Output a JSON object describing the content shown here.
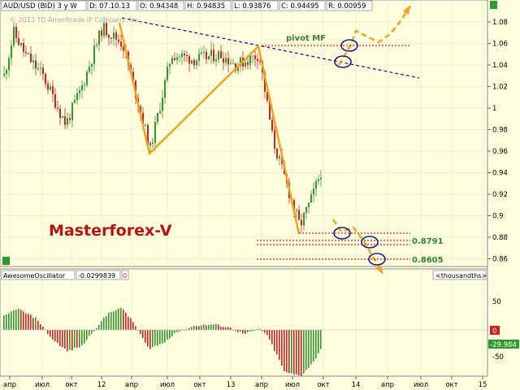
{
  "header": {
    "symbol": "AUD/USD (BID) 3 y W",
    "date": "D: 07.10.13",
    "open": "O: 0.94348",
    "high": "H: 0.94835",
    "low": "L: 0.93876",
    "close": "C: 0.94495",
    "range": "R: 0.00959"
  },
  "copyright": "© 2013 TD Ameritrade IP Company, Inc.",
  "watermark": "Masterforex-V",
  "annotations": {
    "pivot": "pivot MF",
    "level1": "0.8791",
    "level2": "0.8605"
  },
  "oscillator": {
    "name": "AwesomeOscillator",
    "value": "-0.0299839",
    "zero_box": "0",
    "unit": "<thousandths>",
    "current_value": "-29.984",
    "scale": [
      "50",
      "0",
      "-50"
    ]
  },
  "price_axis": [
    "1.08",
    "1.06",
    "1.04",
    "1.02",
    "1",
    "0.98",
    "0.96",
    "0.94",
    "0.92",
    "0.9",
    "0.88",
    "0.86"
  ],
  "time_axis": [
    "апр",
    "июл",
    "окт",
    "12",
    "апр",
    "июл",
    "окт",
    "13",
    "апр",
    "июл",
    "окт",
    "14",
    "апр",
    "июл",
    "окт",
    "15"
  ],
  "colors": {
    "up": "#2e9a2e",
    "down": "#cc2222",
    "trend": "#1a1a9e",
    "zigzag": "#f5a21c",
    "level": "#d81c1c",
    "watermark": "#bb1111",
    "green_text": "#2a8a2a",
    "ellipse": "#1f1f8a"
  },
  "chart_data": {
    "type": "candlestick",
    "title": "AUD/USD (BID) 3 y W",
    "ylim": [
      0.855,
      1.095
    ],
    "x": [
      "2011-03",
      "2011-05",
      "2011-07",
      "2011-09",
      "2011-11",
      "2012-01",
      "2012-03",
      "2012-05",
      "2012-07",
      "2012-09",
      "2012-11",
      "2013-01",
      "2013-03",
      "2013-05",
      "2013-07",
      "2013-09",
      "2013-10"
    ],
    "close": [
      1.03,
      1.07,
      1.05,
      0.99,
      1.02,
      1.07,
      1.06,
      0.96,
      1.05,
      1.04,
      1.05,
      1.04,
      1.05,
      0.97,
      0.89,
      0.92,
      0.945
    ],
    "levels": {
      "pivot_mf": 1.058,
      "line_0_8791": 0.8791,
      "line_0_8605": 0.8605,
      "support": 0.884
    },
    "oscillator_range": [
      -90,
      70
    ]
  }
}
